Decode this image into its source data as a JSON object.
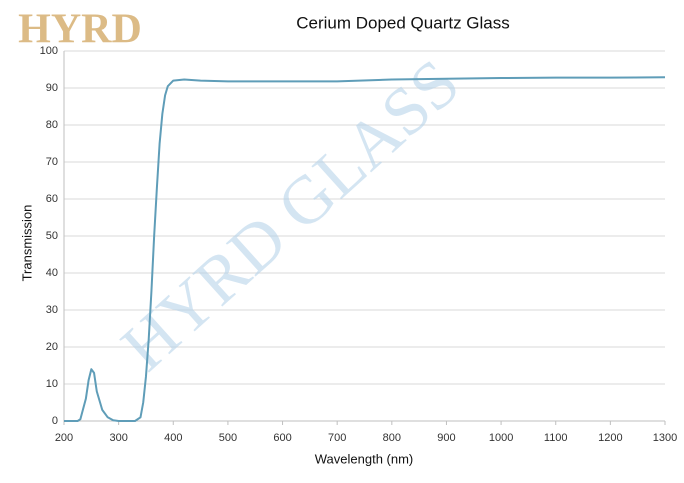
{
  "logo": "HYRD",
  "watermark": "HYRD GLASS",
  "chart_data": {
    "type": "line",
    "title": "Cerium Doped Quartz Glass",
    "x_label": "Wavelength (nm)",
    "y_label": "Transmission",
    "x": [
      200,
      225,
      230,
      240,
      245,
      250,
      255,
      260,
      270,
      280,
      290,
      300,
      330,
      340,
      345,
      350,
      355,
      360,
      365,
      370,
      375,
      380,
      385,
      390,
      400,
      420,
      450,
      500,
      600,
      700,
      800,
      900,
      1000,
      1100,
      1200,
      1300
    ],
    "values": [
      0,
      0,
      0.5,
      6,
      11,
      14,
      13,
      8,
      3,
      1,
      0.2,
      0,
      0,
      1,
      5,
      12,
      22,
      35,
      50,
      63,
      75,
      83,
      88,
      90.5,
      92,
      92.3,
      92,
      91.8,
      91.8,
      91.8,
      92.3,
      92.5,
      92.7,
      92.8,
      92.8,
      92.9
    ],
    "color": "#5f9db8",
    "xlim": [
      200,
      1300
    ],
    "xticks": [
      200,
      300,
      400,
      500,
      600,
      700,
      800,
      900,
      1000,
      1100,
      1200,
      1300
    ],
    "ylim": [
      0,
      100
    ],
    "yticks": [
      0,
      10,
      20,
      30,
      40,
      50,
      60,
      70,
      80,
      90,
      100
    ],
    "grid": true
  }
}
